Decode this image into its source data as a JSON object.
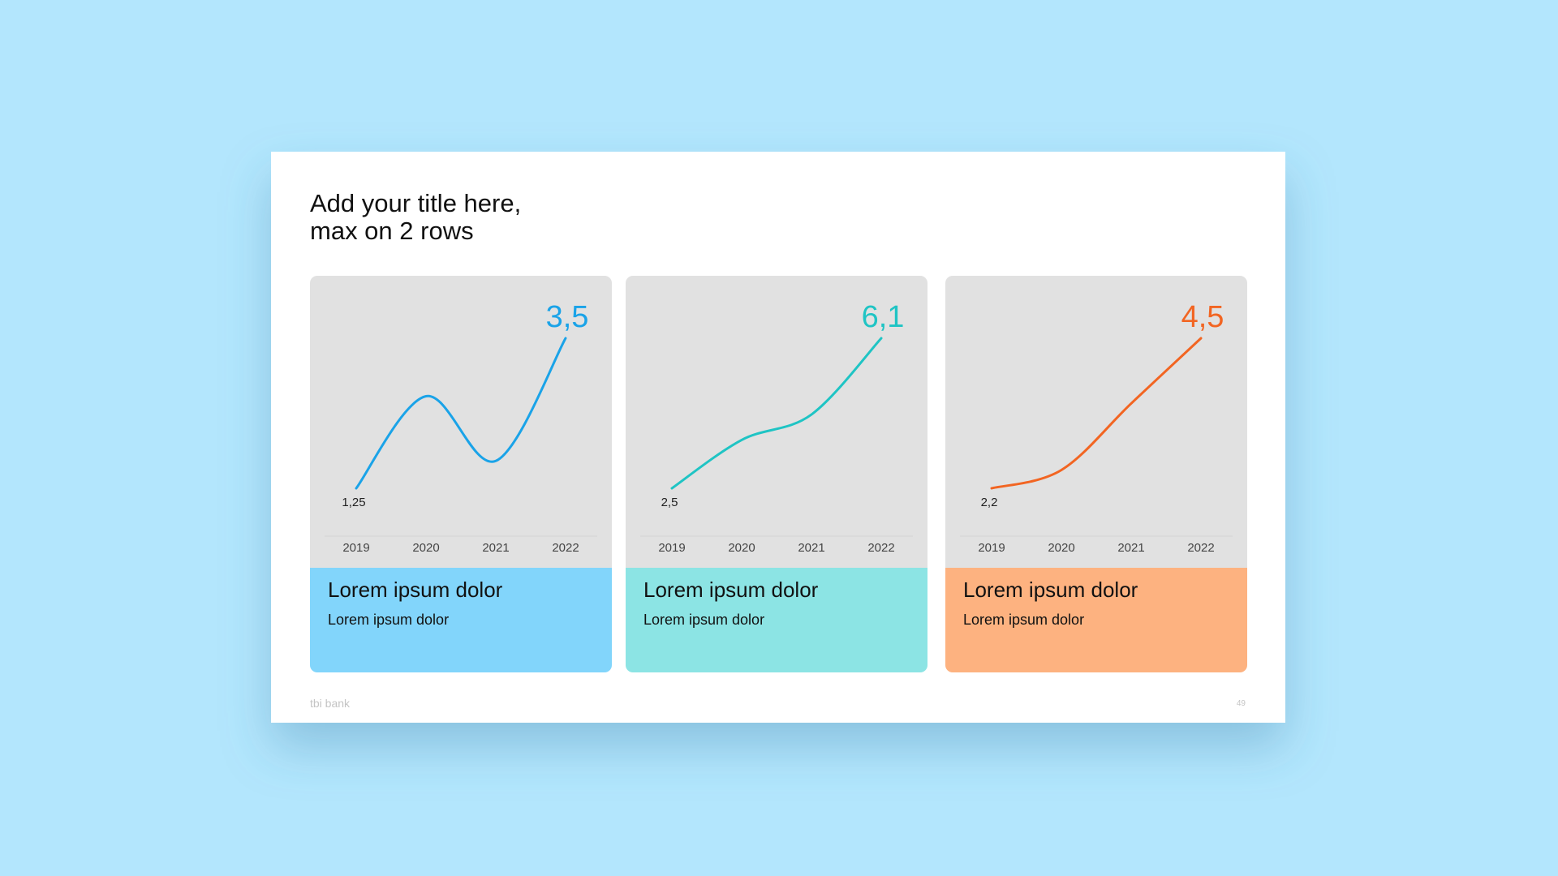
{
  "slide": {
    "title": [
      "Add your title here,",
      "max on 2 rows"
    ],
    "footer": "tbi bank",
    "page": "49"
  },
  "chart_data": [
    {
      "type": "line",
      "categories": [
        "2019",
        "2020",
        "2021",
        "2022"
      ],
      "values": [
        1.25,
        2.63,
        1.66,
        3.5
      ],
      "value_labels": [
        "1,25",
        null,
        null,
        "3,5"
      ],
      "color": "#1aa3e8",
      "card_color": "#82d5fb",
      "heading": "Lorem ipsum dolor",
      "subheading": "Lorem ipsum dolor"
    },
    {
      "type": "line",
      "categories": [
        "2019",
        "2020",
        "2021",
        "2022"
      ],
      "values": [
        2.5,
        3.66,
        4.27,
        6.1
      ],
      "value_labels": [
        "2,5",
        null,
        null,
        "6,1"
      ],
      "color": "#1fc4c4",
      "card_color": "#8ce4e4",
      "heading": "Lorem ipsum dolor",
      "subheading": "Lorem ipsum dolor"
    },
    {
      "type": "line",
      "categories": [
        "2019",
        "2020",
        "2021",
        "2022"
      ],
      "values": [
        2.2,
        2.48,
        3.5,
        4.5
      ],
      "value_labels": [
        "2,2",
        null,
        null,
        "4,5"
      ],
      "color": "#f26522",
      "card_color": "#fdb280",
      "heading": "Lorem ipsum dolor",
      "subheading": "Lorem ipsum dolor"
    }
  ]
}
